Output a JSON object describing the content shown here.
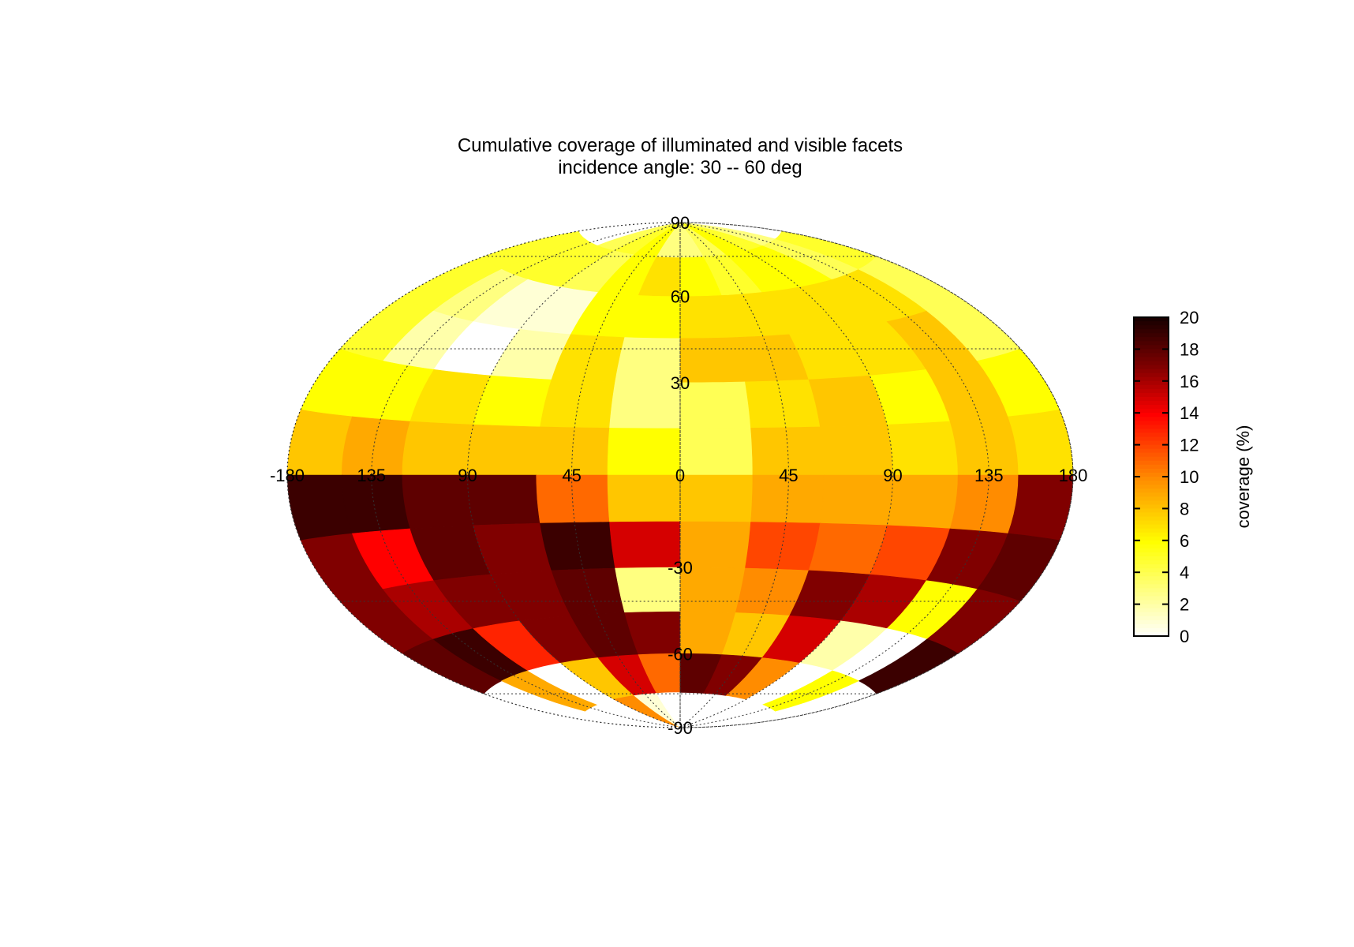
{
  "chart_data": {
    "type": "heatmap",
    "projection": "hammer-aitoff",
    "title": "Cumulative coverage of illuminated and visible facets",
    "subtitle": "incidence angle: 30 -- 60 deg",
    "lon_ticks": [
      "-180",
      "135",
      "90",
      "45",
      "0",
      "45",
      "90",
      "135",
      "180"
    ],
    "lon_tick_values": [
      -180,
      -135,
      -90,
      -45,
      0,
      45,
      90,
      135,
      180
    ],
    "lat_ticks": [
      "90",
      "60",
      "30",
      "-30",
      "-60",
      "-90"
    ],
    "lat_tick_values": [
      90,
      60,
      30,
      -30,
      -60,
      -90
    ],
    "grid": true,
    "colorbar": {
      "label": "coverage (%)",
      "ticks": [
        "0",
        "2",
        "4",
        "6",
        "8",
        "10",
        "12",
        "14",
        "16",
        "18",
        "20"
      ],
      "range": [
        0,
        20
      ],
      "colormap": "hot-reversed",
      "placement": "right"
    },
    "lon_bins": [
      -180,
      -150,
      -120,
      -90,
      -60,
      -30,
      0,
      30,
      60,
      90,
      120,
      150,
      180
    ],
    "lat_bins": [
      90,
      75,
      60,
      45,
      30,
      15,
      0,
      -15,
      -30,
      -45,
      -60,
      -75,
      -90
    ],
    "coverage_grid": [
      [
        null,
        null,
        4,
        5,
        6,
        3,
        3,
        4,
        6,
        5,
        3,
        null
      ],
      [
        5,
        5,
        5,
        4,
        6,
        7,
        6,
        5,
        6,
        6,
        4,
        5
      ],
      [
        5,
        3,
        1,
        1,
        6,
        6,
        7,
        7,
        7,
        7,
        7,
        4
      ],
      [
        5,
        2,
        0,
        2,
        7,
        3,
        8,
        8,
        7,
        7,
        8,
        4
      ],
      [
        6,
        6,
        7,
        6,
        7,
        3,
        4,
        7,
        8,
        6,
        8,
        6
      ],
      [
        8,
        9,
        8,
        8,
        8,
        6,
        4,
        8,
        8,
        7,
        8,
        7
      ],
      [
        19,
        19,
        18,
        18,
        11,
        8,
        8,
        9,
        9,
        9,
        10,
        17
      ],
      [
        17,
        14,
        18,
        17,
        19,
        15,
        9,
        12,
        11,
        12,
        17,
        18
      ],
      [
        17,
        16,
        17,
        17,
        18,
        3,
        9,
        10,
        17,
        16,
        6,
        17
      ],
      [
        18,
        19,
        13,
        17,
        18,
        17,
        9,
        8,
        15,
        2,
        0,
        19
      ],
      [
        null,
        9,
        0,
        8,
        15,
        11,
        18,
        17,
        10,
        0,
        6,
        null
      ],
      [
        null,
        null,
        null,
        10,
        1,
        0,
        null,
        null,
        null,
        null,
        null,
        null
      ]
    ]
  }
}
